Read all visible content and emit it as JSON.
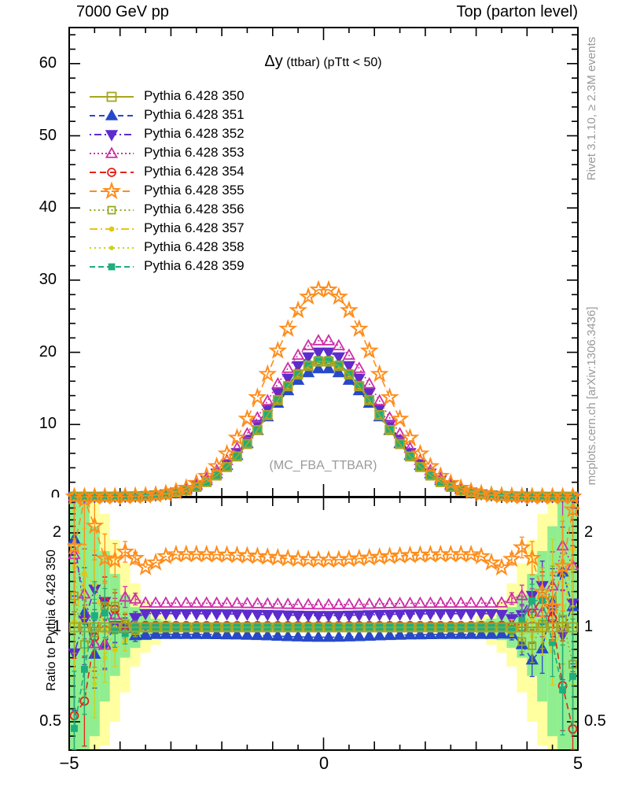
{
  "header": {
    "left": "7000 GeV pp",
    "right": "Top (parton level)"
  },
  "title": {
    "delta": "Δy",
    "rest": " (ttbar) (pTtt < 50)"
  },
  "watermark": "(MC_FBA_TTBAR)",
  "side_notes": {
    "top": "Rivet 3.1.10, ≥ 2.3M events",
    "bottom": "mcplots.cern.ch [arXiv:1306.3436]"
  },
  "ratio_ylabel": "Ratio to Pythia 6.428 350",
  "axes": {
    "x": {
      "min": -5,
      "max": 5,
      "minor_step": 0.5,
      "tick_labels": [
        {
          "v": -5,
          "t": "−5"
        },
        {
          "v": 0,
          "t": "0"
        },
        {
          "v": 5,
          "t": "5"
        }
      ]
    },
    "main_y": {
      "min": 0,
      "max": 65,
      "major_step": 10,
      "minor_step": 2,
      "labels": [
        10,
        20,
        30,
        40,
        50,
        60
      ],
      "clipped_zero": "0"
    },
    "ratio_y": {
      "min": 0.406,
      "max": 2.59,
      "scale": "log2",
      "labels": [
        {
          "v": 2,
          "t": "2"
        },
        {
          "v": 1,
          "t": "1"
        },
        {
          "v": 0.5,
          "t": "0.5"
        }
      ],
      "minors": [
        0.45,
        0.55,
        0.6,
        0.65,
        0.7,
        0.75,
        0.8,
        0.85,
        0.9,
        0.95,
        1.1,
        1.2,
        1.3,
        1.4,
        1.5,
        1.6,
        1.7,
        1.8,
        1.9,
        2.1,
        2.2,
        2.3,
        2.4,
        2.5
      ]
    }
  },
  "chart_data": {
    "type": "line",
    "title": "Δy (ttbar) (pTtt < 50)",
    "reference": "Pythia 6.428 350",
    "x_start": -4.9,
    "bin_width": 0.2,
    "n_bins": 50,
    "legend_position": "top-left",
    "series": [
      {
        "label": "Pythia 6.428 350",
        "color": "#a9a421",
        "dash": "",
        "marker": {
          "shape": "square",
          "size": 11,
          "filled": false
        },
        "main": {
          "peak": 18.8,
          "sigma": 1.09
        },
        "ratio": {
          "flat": true,
          "r0": 1.0,
          "a0": 0,
          "dip": 0
        }
      },
      {
        "label": "Pythia 6.428 351",
        "color": "#2749c9",
        "dash": "7,5",
        "marker": {
          "shape": "tri-up",
          "size": 11,
          "filled": true
        },
        "main": {
          "peak": 17.8,
          "sigma": 1.13
        },
        "ratio": {
          "flat": false,
          "r0": 0.95,
          "a0": -0.02,
          "dip": 0
        }
      },
      {
        "label": "Pythia 6.428 352",
        "color": "#5c2ccd",
        "dash": "2,4,9,4",
        "marker": {
          "shape": "tri-down",
          "size": 11,
          "filled": true
        },
        "main": {
          "peak": 20.1,
          "sigma": 1.1
        },
        "ratio": {
          "flat": false,
          "r0": 1.105,
          "a0": -0.015,
          "dip": 0
        }
      },
      {
        "label": "Pythia 6.428 353",
        "color": "#cd2fa6",
        "dash": "2,3",
        "marker": {
          "shape": "tri-up",
          "size": 11,
          "filled": false
        },
        "main": {
          "peak": 21.7,
          "sigma": 1.11
        },
        "ratio": {
          "flat": false,
          "r0": 1.195,
          "a0": -0.015,
          "dip": 0
        }
      },
      {
        "label": "Pythia 6.428 354",
        "color": "#e5231b",
        "dash": "8,5",
        "marker": {
          "shape": "circle",
          "size": 10,
          "filled": false
        },
        "main": {
          "peak": 19.0,
          "sigma": 1.09
        },
        "ratio": {
          "flat": false,
          "r0": 1.012,
          "a0": 0,
          "dip": 0
        }
      },
      {
        "label": "Pythia 6.428 355",
        "color": "#ff8c1a",
        "dash": "9,5",
        "marker": {
          "shape": "star",
          "size": 14,
          "filled": false
        },
        "main": {
          "peak": 28.8,
          "sigma": 1.07
        },
        "ratio": {
          "flat": false,
          "r0": 1.71,
          "a0": -0.07,
          "dip": -0.16
        }
      },
      {
        "label": "Pythia 6.428 356",
        "color": "#97a820",
        "dash": "2,3.5",
        "marker": {
          "shape": "square",
          "size": 9,
          "filled": false
        },
        "main": {
          "peak": 18.9,
          "sigma": 1.09
        },
        "ratio": {
          "flat": false,
          "r0": 1.002,
          "a0": 0,
          "dip": 0
        }
      },
      {
        "label": "Pythia 6.428 357",
        "color": "#e2c713",
        "dash": "10,4,2,4",
        "marker": {
          "shape": "circle",
          "size": 5,
          "filled": true
        },
        "main": {
          "peak": 18.8,
          "sigma": 1.09
        },
        "ratio": {
          "flat": false,
          "r0": 0.998,
          "a0": 0,
          "dip": 0
        }
      },
      {
        "label": "Pythia 6.428 358",
        "color": "#c9d21d",
        "dash": "2,4",
        "marker": {
          "shape": "circle",
          "size": 4,
          "filled": true
        },
        "main": {
          "peak": 18.85,
          "sigma": 1.09
        },
        "ratio": {
          "flat": false,
          "r0": 1.0,
          "a0": 0,
          "dip": 0
        }
      },
      {
        "label": "Pythia 6.428 359",
        "color": "#1fae7e",
        "dash": "7,4",
        "marker": {
          "shape": "square",
          "size": 7,
          "filled": true
        },
        "main": {
          "peak": 19.1,
          "sigma": 1.09
        },
        "ratio": {
          "flat": false,
          "r0": 1.003,
          "a0": 0,
          "dip": 0
        }
      }
    ],
    "draw_order": [
      1,
      2,
      3,
      4,
      7,
      8,
      6,
      9,
      0,
      5
    ],
    "ratio_noise": {
      "onset": 3.4,
      "scale": 1.1,
      "power": 1.8,
      "log2_coeff": 0.41,
      "err_base": 0.03,
      "err_coeff": 0.33
    },
    "ref_line": {
      "y": 1,
      "color": "#000000"
    },
    "bands": {
      "yellow": {
        "color": "#ffffa0",
        "segments": [
          [
            -5,
            -4.4,
            0.406,
            2.59
          ],
          [
            -4.4,
            -4.2,
            0.42,
            2.3
          ],
          [
            -4.2,
            -4.0,
            0.5,
            1.9
          ],
          [
            -4.0,
            -3.8,
            0.62,
            1.6
          ],
          [
            -3.8,
            -3.6,
            0.75,
            1.38
          ],
          [
            -3.6,
            -3.4,
            0.83,
            1.22
          ],
          [
            -3.4,
            -3.2,
            0.88,
            1.14
          ],
          [
            -3.2,
            -3.0,
            0.92,
            1.09
          ],
          [
            -3.0,
            3.0,
            0.975,
            1.028
          ],
          [
            3.0,
            3.2,
            0.92,
            1.09
          ],
          [
            3.2,
            3.4,
            0.88,
            1.14
          ],
          [
            3.4,
            3.6,
            0.83,
            1.22
          ],
          [
            3.6,
            3.8,
            0.75,
            1.38
          ],
          [
            3.8,
            4.0,
            0.62,
            1.6
          ],
          [
            4.0,
            4.2,
            0.5,
            1.9
          ],
          [
            4.2,
            4.4,
            0.42,
            2.3
          ],
          [
            4.4,
            5,
            0.406,
            2.59
          ]
        ]
      },
      "green": {
        "color": "#90ee90",
        "segments": [
          [
            -5,
            -4.6,
            0.406,
            2.59
          ],
          [
            -4.6,
            -4.4,
            0.45,
            2.1
          ],
          [
            -4.4,
            -4.2,
            0.58,
            1.75
          ],
          [
            -4.2,
            -4.0,
            0.7,
            1.48
          ],
          [
            -4.0,
            -3.8,
            0.8,
            1.27
          ],
          [
            -3.8,
            -3.6,
            0.86,
            1.16
          ],
          [
            -3.6,
            -3.4,
            0.91,
            1.1
          ],
          [
            -3.4,
            -3.2,
            0.94,
            1.065
          ],
          [
            -3.2,
            -3.0,
            0.955,
            1.05
          ],
          [
            -3.0,
            3.0,
            0.986,
            1.014
          ],
          [
            3.0,
            3.2,
            0.955,
            1.05
          ],
          [
            3.2,
            3.4,
            0.94,
            1.065
          ],
          [
            3.4,
            3.6,
            0.91,
            1.1
          ],
          [
            3.6,
            3.8,
            0.86,
            1.16
          ],
          [
            3.8,
            4.0,
            0.8,
            1.27
          ],
          [
            4.0,
            4.2,
            0.7,
            1.48
          ],
          [
            4.2,
            4.4,
            0.58,
            1.75
          ],
          [
            4.4,
            4.6,
            0.45,
            2.1
          ],
          [
            4.6,
            5,
            0.406,
            2.59
          ]
        ]
      }
    }
  }
}
